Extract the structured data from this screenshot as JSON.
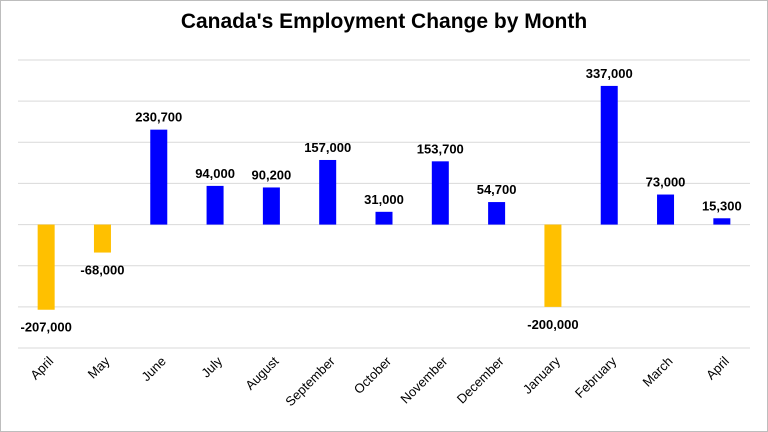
{
  "chart_data": {
    "type": "bar",
    "title": "Canada's Employment Change by Month",
    "xlabel": "",
    "ylabel": "",
    "categories": [
      "April",
      "May",
      "June",
      "July",
      "August",
      "September",
      "October",
      "November",
      "December",
      "January",
      "February",
      "March",
      "April"
    ],
    "values": [
      -207000,
      -68000,
      230700,
      94000,
      90200,
      157000,
      31000,
      153700,
      54700,
      -200000,
      337000,
      73000,
      15300
    ],
    "data_labels": [
      "-207,000",
      "-68,000",
      "230,700",
      "94,000",
      "90,200",
      "157,000",
      "31,000",
      "153,700",
      "54,700",
      "-200,000",
      "337,000",
      "73,000",
      "15,300"
    ],
    "ylim": [
      -300000,
      400000
    ],
    "grid": true,
    "legend": "none",
    "colors": {
      "positive": "#0000FF",
      "negative": "#FFC000",
      "grid": "#d9d9d9",
      "text": "#000000"
    }
  }
}
